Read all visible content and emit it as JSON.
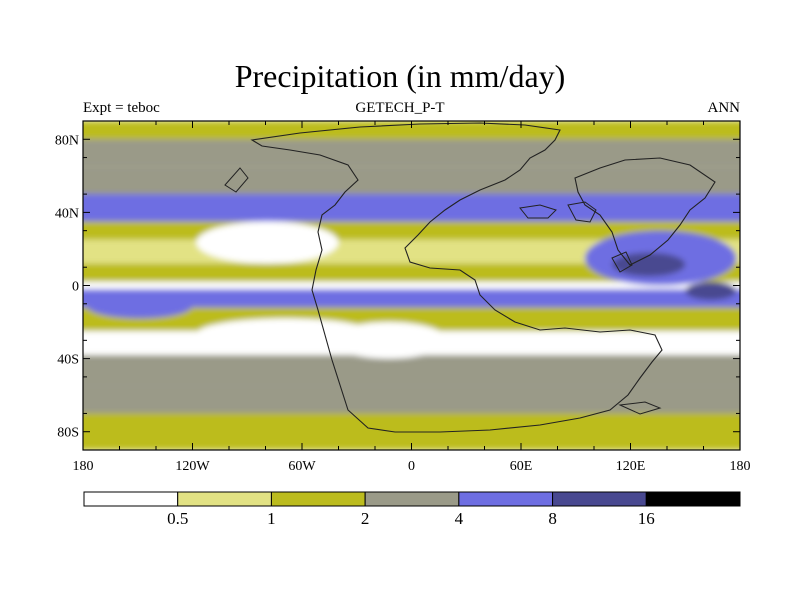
{
  "title": "Precipitation (in mm/day)",
  "left_subtitle": "Expt = teboc",
  "center_subtitle": "GETECH_P-T",
  "right_subtitle": "ANN",
  "lat_ticks": [
    "80N",
    "40N",
    "0",
    "40S",
    "80S"
  ],
  "lon_ticks": [
    "180",
    "120W",
    "60W",
    "0",
    "60E",
    "120E",
    "180"
  ],
  "legend": {
    "labels": [
      "0.5",
      "1",
      "2",
      "4",
      "8",
      "16"
    ],
    "colors": [
      "#ffffff",
      "#e2e284",
      "#bcbc1e",
      "#9a9a88",
      "#6e6ee2",
      "#484890",
      "#000000"
    ]
  },
  "chart_data": {
    "type": "heatmap",
    "title": "Precipitation (in mm/day)",
    "experiment": "Expt = teboc",
    "dataset": "GETECH_P-T",
    "period": "ANN",
    "units": "mm/day",
    "x_range": [
      -180,
      180
    ],
    "y_range": [
      -90,
      90
    ],
    "contour_levels": [
      0.5,
      1,
      2,
      4,
      8,
      16
    ],
    "fill_colors": [
      "#ffffff",
      "#e2e284",
      "#bcbc1e",
      "#9a9a88",
      "#6e6ee2",
      "#484890",
      "#000000"
    ],
    "zonal_bands": [
      {
        "lat_range": [
          80,
          90
        ],
        "level": 2
      },
      {
        "lat_range": [
          65,
          80
        ],
        "level": 3
      },
      {
        "lat_range": [
          50,
          65
        ],
        "level": 3
      },
      {
        "lat_range": [
          35,
          50
        ],
        "level": 4
      },
      {
        "lat_range": [
          25,
          35
        ],
        "level": 2
      },
      {
        "lat_range": [
          12,
          25
        ],
        "level": 1
      },
      {
        "lat_range": [
          2,
          12
        ],
        "level": 2
      },
      {
        "lat_range": [
          -2,
          2
        ],
        "level": 0
      },
      {
        "lat_range": [
          -12,
          -2
        ],
        "level": 4
      },
      {
        "lat_range": [
          -25,
          -12
        ],
        "level": 2
      },
      {
        "lat_range": [
          -38,
          -25
        ],
        "level": 0
      },
      {
        "lat_range": [
          -55,
          -38
        ],
        "level": 3
      },
      {
        "lat_range": [
          -70,
          -55
        ],
        "level": 3
      },
      {
        "lat_range": [
          -90,
          -70
        ],
        "level": 2
      }
    ],
    "features": [
      {
        "name": "northern desert",
        "lon": [
          -118,
          -40
        ],
        "lat": [
          12,
          35
        ],
        "level": 0
      },
      {
        "name": "southern desert",
        "lon": [
          -118,
          -20
        ],
        "lat": [
          -35,
          -18
        ],
        "level": 0
      },
      {
        "name": "interior desert",
        "lon": [
          -45,
          20
        ],
        "lat": [
          -40,
          -20
        ],
        "level": 0
      },
      {
        "name": "east pacific wet belt",
        "lon": [
          95,
          178
        ],
        "lat": [
          0,
          30
        ],
        "level": 4
      },
      {
        "name": "west tethys wet core",
        "lon": [
          110,
          150
        ],
        "lat": [
          5,
          18
        ],
        "level": 5
      },
      {
        "name": "east tethys wet core",
        "lon": [
          150,
          178
        ],
        "lat": [
          -8,
          2
        ],
        "level": 5
      },
      {
        "name": "southern ocean wet band",
        "lon": [
          -178,
          -120
        ],
        "lat": [
          -18,
          -4
        ],
        "level": 4
      }
    ]
  }
}
